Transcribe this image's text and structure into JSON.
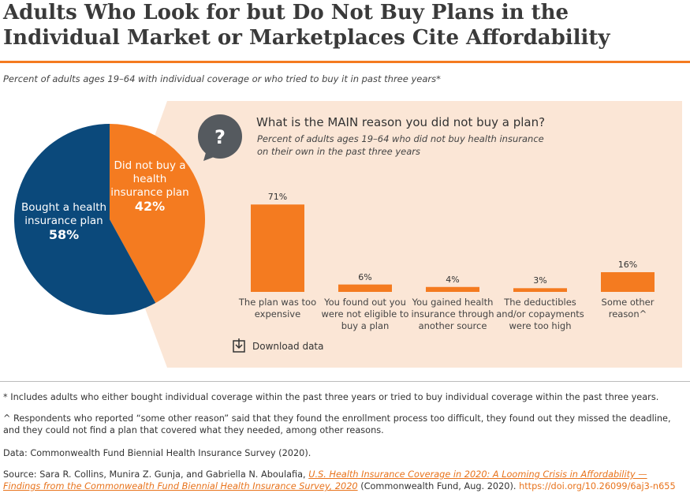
{
  "title": "Adults Who Look for but Do Not Buy Plans in the Individual Market or Marketplaces Cite Affordability",
  "subtitle": "Percent of adults ages 19–64 with individual coverage or who tried to buy it in past three years*",
  "chart_data": [
    {
      "type": "pie",
      "categories": [
        "Bought a health insurance plan",
        "Did not buy a health insurance plan"
      ],
      "values": [
        58,
        42
      ],
      "value_labels": [
        "58%",
        "42%"
      ],
      "colors": [
        "#0b497b",
        "#f47b20"
      ]
    },
    {
      "type": "bar",
      "title": "What is the MAIN reason you did not buy a plan?",
      "subtitle": "Percent of adults ages 19–64 who did not buy health insurance on their own in the past three years",
      "categories": [
        "The plan was too expensive",
        "You found out you were not eligible to buy a plan",
        "You gained health insurance through another source",
        "The deductibles and/or copayments were too high",
        "Some other reason^"
      ],
      "values": [
        71,
        6,
        4,
        3,
        16
      ],
      "value_labels": [
        "71%",
        "6%",
        "4%",
        "3%",
        "16%"
      ],
      "color": "#f47b20"
    }
  ],
  "download": "Download data",
  "notes": [
    "* Includes adults who either bought individual coverage within the past three years or tried to buy individual coverage within the past three years.",
    "^ Respondents who reported “some other reason” said that they found the enrollment process too difficult, they found out they missed the deadline, and they could not find a plan that covered what they needed, among other reasons.",
    "Data: Commonwealth Fund Biennial Health Insurance Survey (2020)."
  ],
  "source": {
    "prefix": "Source: Sara R. Collins, Munira Z. Gunja, and Gabriella N. Aboulafia, ",
    "link": "U.S. Health Insurance Coverage in 2020: A Looming Crisis in Affordability — Findings from the Commonwealth Fund Biennial Health Insurance Survey, 2020",
    "suffix": " (Commonwealth Fund, Aug. 2020). ",
    "url": "https://doi.org/10.26099/6aj3-n655"
  }
}
